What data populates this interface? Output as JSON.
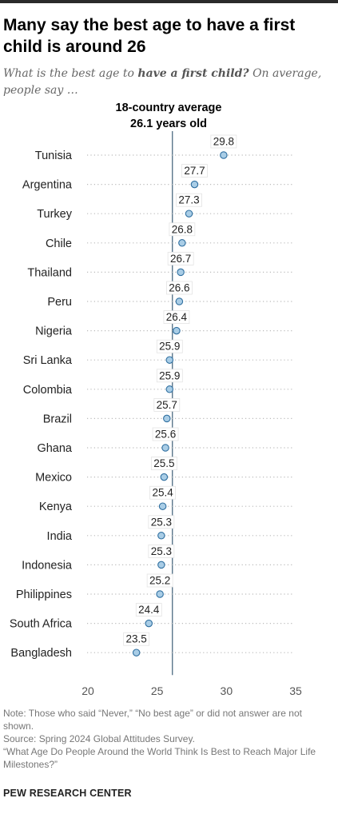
{
  "title": "Many say the best age to have a first child is around 26",
  "subtitle": {
    "before": "What is the best age to ",
    "emphasis": "have a first child?",
    "after": " On average, people say …"
  },
  "chart_data": {
    "type": "scatter",
    "categories": [
      "Tunisia",
      "Argentina",
      "Turkey",
      "Chile",
      "Thailand",
      "Peru",
      "Nigeria",
      "Sri Lanka",
      "Colombia",
      "Brazil",
      "Ghana",
      "Mexico",
      "Kenya",
      "India",
      "Indonesia",
      "Philippines",
      "South Africa",
      "Bangladesh"
    ],
    "values": [
      29.8,
      27.7,
      27.3,
      26.8,
      26.7,
      26.6,
      26.4,
      25.9,
      25.9,
      25.7,
      25.6,
      25.5,
      25.4,
      25.3,
      25.3,
      25.2,
      24.4,
      23.5
    ],
    "value_labels": [
      "29.8",
      "27.7",
      "27.3",
      "26.8",
      "26.7",
      "26.6",
      "26.4",
      "25.9",
      "25.9",
      "25.7",
      "25.6",
      "25.5",
      "25.4",
      "25.3",
      "25.3",
      "25.2",
      "24.4",
      "23.5"
    ],
    "xlim": [
      20,
      35
    ],
    "xticks": [
      20,
      25,
      30,
      35
    ],
    "reference_line": {
      "value": 26.1,
      "label_line1": "18-country average",
      "label_line2": "26.1 years old"
    },
    "colors": {
      "dot_fill": "#a9cde6",
      "dot_stroke": "#2f6fa0",
      "reference": "#4d6b82",
      "dotted": "#bbbbbb"
    }
  },
  "notes": [
    "Note: Those who said “Never,” “No best age” or did not answer are not shown.",
    "Source: Spring 2024 Global Attitudes Survey.",
    "“What Age Do People Around the World Think Is Best to Reach Major Life Milestones?”"
  ],
  "brand": "PEW RESEARCH CENTER"
}
